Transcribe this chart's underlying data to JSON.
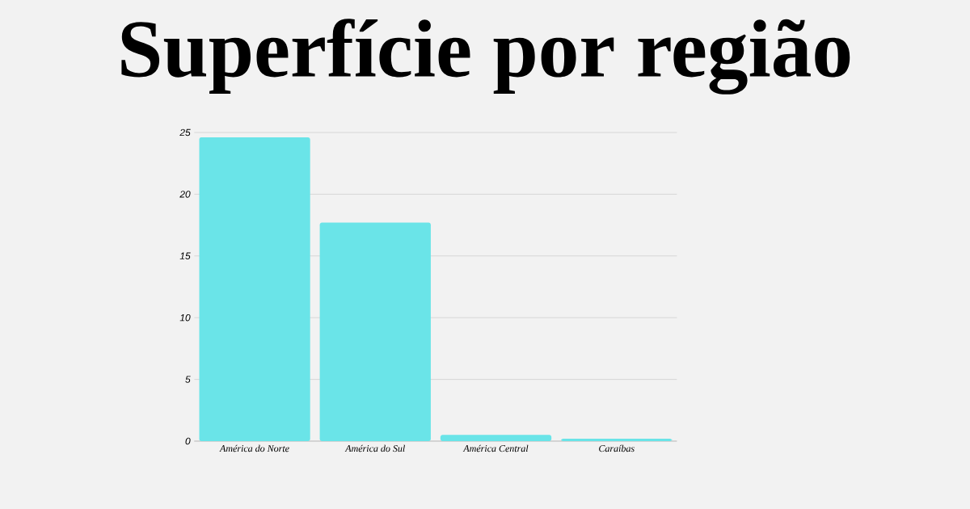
{
  "chart_data": {
    "type": "bar",
    "title": "Superfície por região",
    "categories": [
      "América do Norte",
      "América do Sul",
      "América Central",
      "Caraíbas"
    ],
    "values": [
      24.6,
      17.7,
      0.5,
      0.2
    ],
    "color": "#6ae4e8",
    "ylim": [
      0,
      25
    ],
    "yticks": [
      0,
      5,
      10,
      15,
      20,
      25
    ],
    "grid": "y"
  }
}
